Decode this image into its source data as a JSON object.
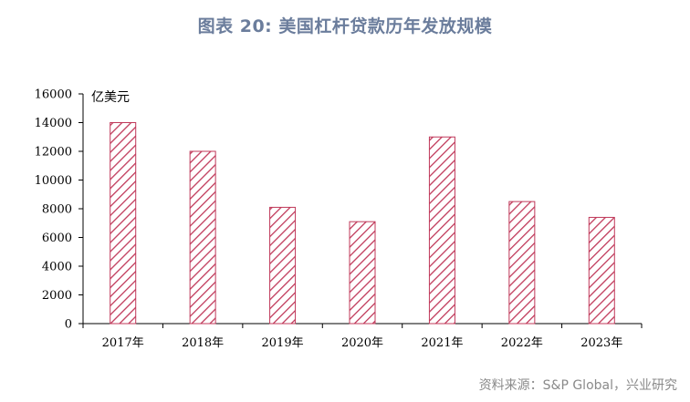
{
  "title": "图表 20: 美国杠杆贷款历年发放规模",
  "source": "资料来源：S&P Global，兴业研究",
  "chart_data": {
    "type": "bar",
    "unit": "亿美元",
    "categories": [
      "2017年",
      "2018年",
      "2019年",
      "2020年",
      "2021年",
      "2022年",
      "2023年"
    ],
    "values": [
      14000,
      12000,
      8100,
      7100,
      13000,
      8500,
      7400
    ],
    "ylim": [
      0,
      16000
    ],
    "yticks": [
      0,
      2000,
      4000,
      6000,
      8000,
      10000,
      12000,
      14000,
      16000
    ],
    "grid": false,
    "bar_color": "#c0395a",
    "bar_fill": "diagonal-hatch"
  }
}
